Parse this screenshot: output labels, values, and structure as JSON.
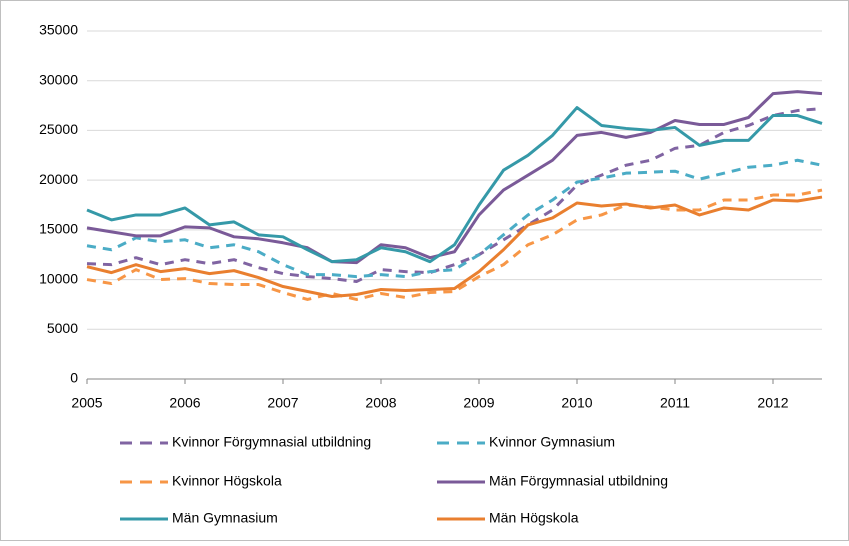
{
  "chart_data": {
    "type": "line",
    "x": [
      2005,
      2005.25,
      2005.5,
      2005.75,
      2006,
      2006.25,
      2006.5,
      2006.75,
      2007,
      2007.25,
      2007.5,
      2007.75,
      2008,
      2008.25,
      2008.5,
      2008.75,
      2009,
      2009.25,
      2009.5,
      2009.75,
      2010,
      2010.25,
      2010.5,
      2010.75,
      2011,
      2011.25,
      2011.5,
      2011.75,
      2012,
      2012.25,
      2012.5
    ],
    "xlim": [
      2005,
      2012.5
    ],
    "xticks": [
      2005,
      2006,
      2007,
      2008,
      2009,
      2010,
      2011,
      2012
    ],
    "ylim": [
      0,
      35000
    ],
    "yticks": [
      0,
      5000,
      10000,
      15000,
      20000,
      25000,
      30000,
      35000
    ],
    "grid": true,
    "legend": "bottom",
    "series": [
      {
        "name": "Kvinnor Förgymnasial utbildning",
        "color": "#8064a2",
        "dash": true,
        "values": [
          11600,
          11500,
          12200,
          11500,
          12000,
          11600,
          12000,
          11200,
          10600,
          10300,
          10100,
          9800,
          11000,
          10800,
          10700,
          11500,
          12500,
          14000,
          15500,
          17000,
          19500,
          20500,
          21500,
          22000,
          23200,
          23500,
          24800,
          25500,
          26500,
          27000,
          27200
        ]
      },
      {
        "name": "Kvinnor Gymnasium",
        "color": "#4bacc6",
        "dash": true,
        "values": [
          13400,
          13000,
          14200,
          13800,
          14000,
          13200,
          13500,
          12800,
          11500,
          10500,
          10500,
          10300,
          10500,
          10300,
          10800,
          11000,
          12500,
          14500,
          16500,
          18000,
          19800,
          20200,
          20700,
          20800,
          20900,
          20100,
          20700,
          21300,
          21500,
          22000,
          21500
        ]
      },
      {
        "name": "Kvinnor Högskola",
        "color": "#f79646",
        "dash": true,
        "values": [
          10000,
          9600,
          11000,
          10000,
          10100,
          9600,
          9500,
          9500,
          8700,
          8000,
          8600,
          8000,
          8600,
          8200,
          8700,
          8800,
          10300,
          11500,
          13500,
          14500,
          16000,
          16500,
          17500,
          17300,
          17000,
          17000,
          18000,
          18000,
          18500,
          18500,
          19000
        ]
      },
      {
        "name": "Män Förgymnasial utbildning",
        "color": "#7a5a98",
        "dash": false,
        "values": [
          15200,
          14800,
          14400,
          14400,
          15300,
          15200,
          14300,
          14100,
          13700,
          13200,
          11800,
          11700,
          13500,
          13200,
          12200,
          12800,
          16500,
          19000,
          20500,
          22000,
          24500,
          24800,
          24300,
          24800,
          26000,
          25600,
          25600,
          26300,
          28700,
          28900,
          28700
        ]
      },
      {
        "name": "Män Gymnasium",
        "color": "#3599a8",
        "dash": false,
        "values": [
          17000,
          16000,
          16500,
          16500,
          17200,
          15500,
          15800,
          14500,
          14300,
          13000,
          11800,
          12000,
          13200,
          12800,
          11800,
          13500,
          17500,
          21000,
          22500,
          24500,
          27300,
          25500,
          25200,
          25000,
          25300,
          23500,
          24000,
          24000,
          26500,
          26500,
          25700
        ]
      },
      {
        "name": "Män Högskola",
        "color": "#e97f2f",
        "dash": false,
        "values": [
          11300,
          10700,
          11500,
          10800,
          11100,
          10600,
          10900,
          10200,
          9300,
          8800,
          8300,
          8500,
          9000,
          8900,
          9000,
          9100,
          10800,
          13000,
          15500,
          16200,
          17700,
          17400,
          17600,
          17200,
          17500,
          16500,
          17200,
          17000,
          18000,
          17900,
          18300
        ]
      }
    ]
  }
}
